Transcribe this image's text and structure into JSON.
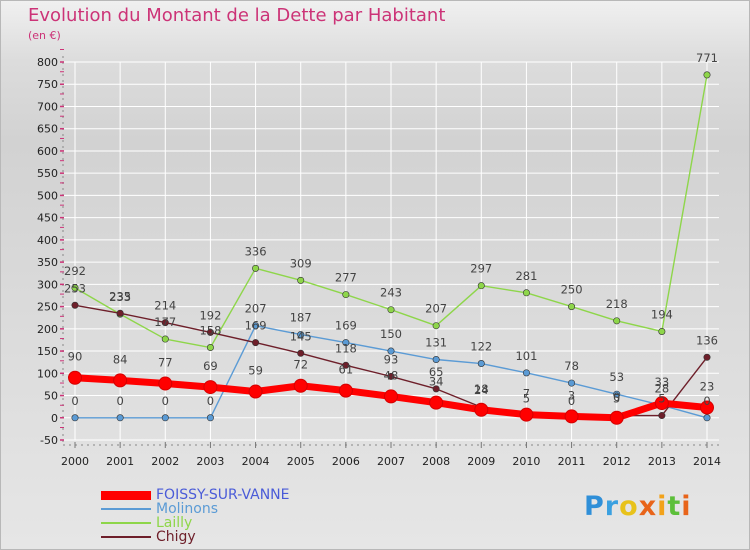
{
  "header": {
    "title": "Evolution du Montant de la Dette par Habitant",
    "subtitle": "(en €)"
  },
  "colors": {
    "title": "#cc3377",
    "grid": "#ffffff",
    "axis_marks": "#cc3377"
  },
  "logo": {
    "letters": [
      "P",
      "r",
      "o",
      "x",
      "i",
      "t",
      "i"
    ],
    "colors": [
      "#2f8fd8",
      "#3aa0e0",
      "#e8c21a",
      "#e8641a",
      "#f2a21a",
      "#5cbf3a",
      "#e8641a"
    ]
  },
  "chart_data": {
    "type": "line",
    "title": "Evolution du Montant de la Dette par Habitant",
    "subtitle": "(en €)",
    "x": [
      "2000",
      "2001",
      "2002",
      "2003",
      "2004",
      "2005",
      "2006",
      "2007",
      "2008",
      "2009",
      "2010",
      "2011",
      "2012",
      "2013",
      "2014"
    ],
    "ylim": [
      -50,
      800
    ],
    "yticks": [
      -50,
      0,
      50,
      100,
      150,
      200,
      250,
      300,
      350,
      400,
      450,
      500,
      550,
      600,
      650,
      700,
      750,
      800
    ],
    "grid": "horizontal",
    "legend_position": "bottom-left",
    "series": [
      {
        "name": "FOISSY-SUR-VANNE",
        "color": "#ff0000",
        "values": [
          90,
          84,
          77,
          69,
          59,
          72,
          61,
          48,
          34,
          18,
          7,
          3,
          0,
          33,
          23
        ]
      },
      {
        "name": "Molinons",
        "color": "#5b9bd5",
        "values": [
          0,
          0,
          0,
          0,
          207,
          187,
          169,
          150,
          131,
          122,
          101,
          78,
          53,
          28,
          0
        ]
      },
      {
        "name": "Lailly",
        "color": "#8ed64a",
        "values": [
          292,
          233,
          177,
          158,
          336,
          309,
          277,
          243,
          207,
          297,
          281,
          250,
          218,
          194,
          771
        ]
      },
      {
        "name": "Chigy",
        "color": "#6e1f2a",
        "values": [
          253,
          235,
          214,
          192,
          169,
          145,
          118,
          93,
          65,
          24,
          5,
          0,
          5,
          5,
          136
        ]
      }
    ]
  }
}
